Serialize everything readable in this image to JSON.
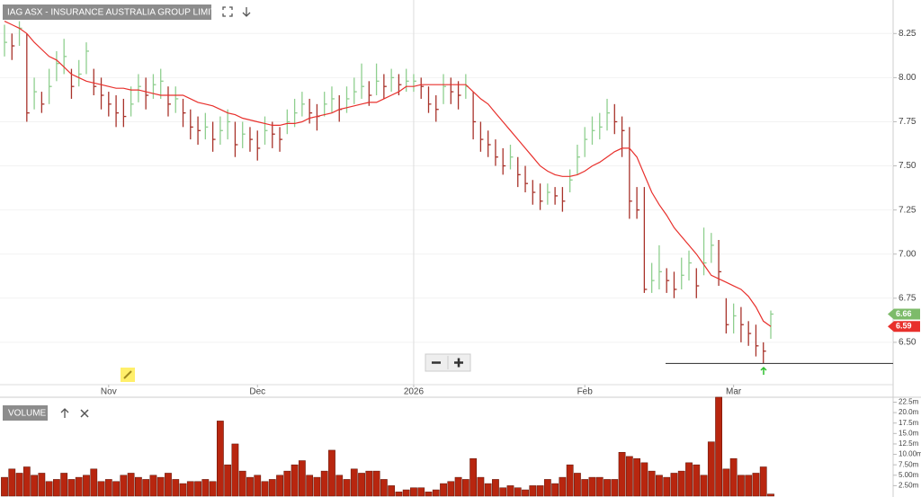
{
  "chart_data": [
    {
      "type": "hlc",
      "title": "IAG ASX - INSURANCE AUSTRALIA GROUP LIMITED",
      "categories": [
        null,
        null,
        null,
        null,
        null,
        null,
        null,
        null,
        null,
        null,
        null,
        null,
        null,
        null,
        "Nov",
        null,
        null,
        null,
        null,
        null,
        null,
        null,
        null,
        null,
        null,
        null,
        null,
        null,
        null,
        null,
        null,
        null,
        null,
        null,
        "Dec",
        null,
        null,
        null,
        null,
        null,
        null,
        null,
        null,
        null,
        null,
        null,
        null,
        null,
        null,
        null,
        null,
        null,
        null,
        null,
        null,
        "2026",
        null,
        null,
        null,
        null,
        null,
        null,
        null,
        null,
        null,
        null,
        null,
        null,
        null,
        null,
        null,
        null,
        null,
        null,
        null,
        null,
        null,
        null,
        "Feb",
        null,
        null,
        null,
        null,
        null,
        null,
        null,
        null,
        null,
        null,
        null,
        null,
        null,
        null,
        null,
        null,
        null,
        null,
        null,
        "Mar",
        null,
        null,
        null,
        null,
        null
      ],
      "high": [
        8.3,
        8.25,
        8.32,
        8.25,
        8.0,
        7.92,
        8.05,
        8.15,
        8.22,
        8.05,
        8.1,
        8.2,
        8.05,
        8.0,
        7.92,
        7.9,
        7.88,
        7.95,
        8.02,
        8.0,
        8.02,
        8.05,
        7.95,
        7.95,
        7.88,
        7.82,
        7.78,
        7.8,
        7.75,
        7.78,
        7.82,
        7.75,
        7.75,
        7.72,
        7.7,
        7.78,
        7.75,
        7.72,
        7.82,
        7.88,
        7.92,
        7.88,
        7.85,
        7.92,
        7.95,
        7.9,
        7.95,
        8.0,
        8.08,
        7.98,
        8.08,
        8.02,
        8.05,
        8.02,
        8.05,
        8.02,
        8.0,
        7.95,
        7.9,
        8.02,
        8.0,
        7.98,
        8.02,
        7.92,
        7.75,
        7.7,
        7.65,
        7.6,
        7.62,
        7.55,
        7.5,
        7.42,
        7.4,
        7.4,
        7.38,
        7.38,
        7.48,
        7.62,
        7.72,
        7.78,
        7.8,
        7.88,
        7.85,
        7.78,
        7.72,
        7.38,
        7.38,
        6.95,
        7.05,
        6.92,
        6.9,
        6.98,
        7.02,
        6.92,
        7.15,
        7.12,
        7.08,
        6.75,
        6.72,
        6.7,
        6.62,
        6.6,
        6.5,
        6.68
      ],
      "low": [
        8.12,
        8.1,
        8.18,
        7.75,
        7.82,
        7.8,
        7.85,
        7.98,
        8.02,
        7.88,
        7.95,
        8.02,
        7.9,
        7.82,
        7.78,
        7.72,
        7.72,
        7.78,
        7.86,
        7.82,
        7.88,
        7.88,
        7.78,
        7.8,
        7.72,
        7.65,
        7.62,
        7.65,
        7.58,
        7.62,
        7.65,
        7.55,
        7.6,
        7.58,
        7.53,
        7.62,
        7.6,
        7.58,
        7.68,
        7.72,
        7.78,
        7.74,
        7.7,
        7.78,
        7.8,
        7.75,
        7.8,
        7.85,
        7.88,
        7.84,
        7.9,
        7.88,
        7.92,
        7.9,
        7.92,
        7.92,
        7.88,
        7.8,
        7.75,
        7.85,
        7.85,
        7.82,
        7.88,
        7.65,
        7.58,
        7.55,
        7.5,
        7.45,
        7.48,
        7.38,
        7.35,
        7.28,
        7.25,
        7.28,
        7.28,
        7.24,
        7.35,
        7.45,
        7.55,
        7.62,
        7.65,
        7.7,
        7.68,
        7.55,
        7.2,
        7.2,
        6.78,
        6.78,
        6.8,
        6.78,
        6.75,
        6.8,
        6.85,
        6.75,
        6.88,
        6.95,
        6.82,
        6.55,
        6.55,
        6.5,
        6.48,
        6.42,
        6.38,
        6.52
      ],
      "close": [
        8.2,
        8.18,
        8.28,
        7.8,
        7.92,
        7.85,
        7.95,
        8.08,
        8.12,
        7.95,
        8.02,
        8.15,
        7.95,
        7.9,
        7.85,
        7.8,
        7.78,
        7.85,
        7.95,
        7.9,
        7.96,
        7.98,
        7.85,
        7.88,
        7.8,
        7.72,
        7.7,
        7.72,
        7.65,
        7.7,
        7.75,
        7.62,
        7.68,
        7.65,
        7.6,
        7.7,
        7.68,
        7.65,
        7.75,
        7.8,
        7.85,
        7.8,
        7.78,
        7.85,
        7.88,
        7.82,
        7.88,
        7.92,
        7.95,
        7.9,
        7.98,
        7.95,
        8.0,
        7.96,
        7.98,
        7.98,
        7.95,
        7.85,
        7.82,
        7.95,
        7.92,
        7.9,
        7.95,
        7.75,
        7.65,
        7.62,
        7.55,
        7.5,
        7.55,
        7.45,
        7.4,
        7.35,
        7.3,
        7.35,
        7.33,
        7.3,
        7.42,
        7.55,
        7.65,
        7.7,
        7.72,
        7.8,
        7.75,
        7.7,
        7.3,
        7.25,
        6.8,
        6.85,
        6.9,
        6.85,
        6.8,
        6.88,
        6.95,
        6.82,
        6.95,
        7.05,
        6.9,
        6.6,
        6.65,
        6.6,
        6.55,
        6.48,
        6.45,
        6.66
      ],
      "ma": {
        "color": "#e8302c",
        "values": [
          8.32,
          8.3,
          8.28,
          8.25,
          8.2,
          8.16,
          8.12,
          8.1,
          8.06,
          8.02,
          8.0,
          7.98,
          7.97,
          7.96,
          7.95,
          7.94,
          7.94,
          7.93,
          7.93,
          7.92,
          7.91,
          7.9,
          7.9,
          7.9,
          7.9,
          7.88,
          7.86,
          7.85,
          7.84,
          7.82,
          7.8,
          7.79,
          7.77,
          7.76,
          7.75,
          7.74,
          7.73,
          7.73,
          7.74,
          7.74,
          7.75,
          7.77,
          7.78,
          7.79,
          7.8,
          7.82,
          7.83,
          7.84,
          7.85,
          7.86,
          7.86,
          7.88,
          7.9,
          7.92,
          7.95,
          7.95,
          7.96,
          7.96,
          7.96,
          7.96,
          7.96,
          7.96,
          7.96,
          7.92,
          7.88,
          7.85,
          7.8,
          7.75,
          7.7,
          7.65,
          7.6,
          7.55,
          7.5,
          7.47,
          7.45,
          7.44,
          7.44,
          7.45,
          7.47,
          7.5,
          7.52,
          7.55,
          7.58,
          7.6,
          7.6,
          7.55,
          7.45,
          7.35,
          7.28,
          7.22,
          7.15,
          7.1,
          7.05,
          7.0,
          6.94,
          6.88,
          6.86,
          6.84,
          6.82,
          6.8,
          6.76,
          6.7,
          6.62,
          6.59
        ]
      },
      "up_color": "#8fcf8f",
      "down_color": "#a8322a",
      "last_color": "#7dbb6a",
      "support_level": 6.38,
      "ylim": [
        6.26,
        8.44
      ],
      "yticks": [
        8.25,
        {
          "value": 8,
          "label": "8.00"
        },
        7.75,
        {
          "value": 7.5,
          "label": "7.50"
        },
        7.25,
        {
          "value": 7,
          "label": "7.00"
        },
        6.75,
        {
          "value": 6.5,
          "label": "6.50"
        }
      ],
      "grid": true
    },
    {
      "type": "bar",
      "title": "VOLUME",
      "color": "#b8260f",
      "values": [
        4.5,
        6.5,
        5.5,
        7.0,
        5.0,
        5.5,
        3.5,
        4.0,
        5.5,
        4.0,
        4.5,
        5.0,
        6.5,
        3.5,
        4.0,
        3.5,
        5.0,
        5.5,
        4.5,
        4.0,
        5.0,
        4.5,
        5.5,
        4.0,
        3.0,
        3.5,
        3.5,
        4.0,
        3.5,
        18.0,
        7.5,
        12.5,
        6.0,
        4.5,
        5.0,
        3.5,
        4.0,
        5.0,
        6.0,
        7.5,
        8.5,
        5.0,
        4.5,
        6.0,
        11.0,
        5.0,
        4.0,
        6.5,
        5.5,
        6.0,
        6.0,
        4.0,
        2.5,
        1.0,
        1.5,
        2.0,
        2.0,
        1.0,
        1.5,
        3.0,
        3.5,
        4.5,
        4.0,
        9.0,
        4.5,
        3.0,
        4.0,
        2.0,
        2.5,
        2.0,
        1.5,
        2.5,
        2.5,
        4.0,
        3.0,
        4.5,
        7.5,
        5.5,
        4.0,
        4.5,
        4.5,
        4.0,
        4.0,
        10.5,
        9.5,
        9.0,
        8.0,
        6.0,
        5.0,
        4.5,
        5.5,
        6.0,
        8.0,
        7.5,
        5.0,
        13.0,
        23.7,
        6.5,
        9.0,
        5.0,
        5.0,
        5.5,
        7.0,
        0.5
      ],
      "ylim": [
        0,
        23.9
      ],
      "yticks": [
        {
          "value": 2.5,
          "label": "2.50m"
        },
        {
          "value": 5,
          "label": "5.00m"
        },
        {
          "value": 7.5,
          "label": "7.50m"
        },
        {
          "value": 10,
          "label": "10.00m"
        },
        {
          "value": 12.5,
          "label": "12.5m"
        },
        {
          "value": 15,
          "label": "15.0m"
        },
        {
          "value": 17.5,
          "label": "17.5m"
        },
        {
          "value": 20,
          "label": "20.0m"
        },
        {
          "value": 22.5,
          "label": "22.5m"
        }
      ]
    }
  ]
}
